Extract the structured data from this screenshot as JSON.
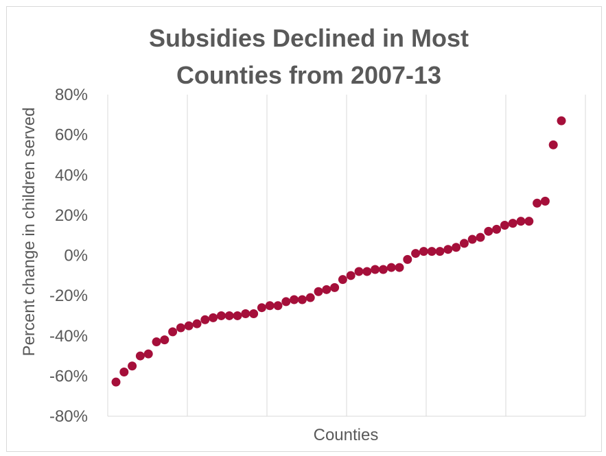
{
  "chart_data": {
    "type": "scatter",
    "title_lines": [
      "Subsidies Declined in Most",
      "Counties from 2007-13"
    ],
    "xlabel": "Counties",
    "ylabel": "Percent change in children served",
    "ylim": [
      -80,
      80
    ],
    "y_ticks": [
      80,
      60,
      40,
      20,
      0,
      -20,
      -40,
      -60,
      -80
    ],
    "y_tick_labels": [
      "80%",
      "60%",
      "40%",
      "20%",
      "0%",
      "-20%",
      "-40%",
      "-60%",
      "-80%"
    ],
    "grid": {
      "vertical": true,
      "horizontal": false
    },
    "x_tick_labels_shown": false,
    "marker_color": "#A50F3A",
    "values": [
      -63,
      -58,
      -55,
      -50,
      -49,
      -43,
      -42,
      -38,
      -36,
      -35,
      -34,
      -32,
      -31,
      -30,
      -30,
      -30,
      -29,
      -29,
      -26,
      -25,
      -25,
      -23,
      -22,
      -22,
      -21,
      -18,
      -17,
      -16,
      -12,
      -10,
      -8,
      -8,
      -7,
      -7,
      -6,
      -6,
      -2,
      1,
      2,
      2,
      2,
      3,
      4,
      6,
      8,
      9,
      12,
      13,
      15,
      16,
      17,
      17,
      26,
      27,
      55,
      67
    ]
  }
}
